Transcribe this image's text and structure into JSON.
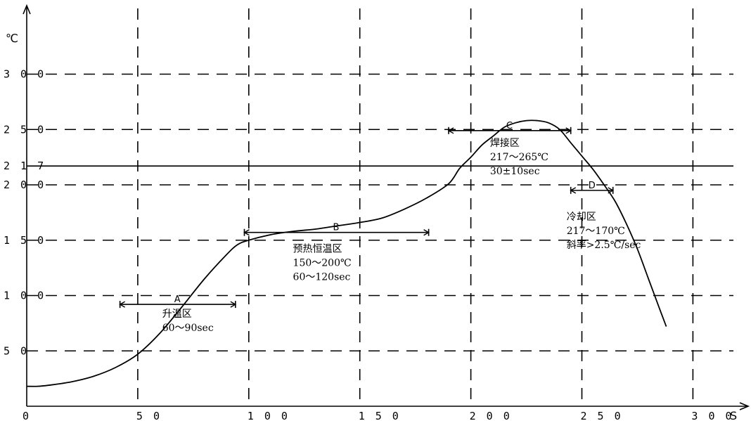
{
  "chart_data": {
    "type": "line",
    "xlabel": "S",
    "ylabel": "℃",
    "xlim": [
      0,
      320
    ],
    "ylim": [
      0,
      320
    ],
    "x_ticks": [
      {
        "value": 0,
        "label": "0"
      },
      {
        "value": 50,
        "label": "5 0"
      },
      {
        "value": 100,
        "label": "1 0 0"
      },
      {
        "value": 150,
        "label": "1 5 0"
      },
      {
        "value": 200,
        "label": "2 0 0"
      },
      {
        "value": 250,
        "label": "2 5 0"
      },
      {
        "value": 300,
        "label": "3 0 0"
      }
    ],
    "y_ticks": [
      {
        "value": 50,
        "label": "5 0"
      },
      {
        "value": 100,
        "label": "1 0 0"
      },
      {
        "value": 150,
        "label": "1 5 0"
      },
      {
        "value": 200,
        "label": "2 0 0"
      },
      {
        "value": 217,
        "label": "2 1 7"
      },
      {
        "value": 250,
        "label": "2 5 0"
      },
      {
        "value": 300,
        "label": "3 0 0"
      }
    ],
    "grid": "dashed",
    "reference_line": {
      "y": 217
    },
    "series": [
      {
        "x": [
          0,
          5,
          10,
          20,
          30,
          40,
          50,
          60,
          70,
          80,
          90,
          95,
          100,
          110,
          120,
          130,
          140,
          150,
          160,
          170,
          180,
          190,
          195,
          200,
          205,
          210,
          215,
          220,
          225,
          230,
          235,
          240,
          245,
          250,
          255,
          260,
          265,
          270,
          275,
          280,
          285,
          288
        ],
        "y": [
          18,
          18,
          19,
          22,
          27,
          35,
          47,
          66,
          90,
          115,
          137,
          146,
          150,
          155,
          158,
          160,
          163,
          166,
          170,
          178,
          188,
          201,
          215,
          225,
          236,
          244,
          252,
          256,
          258,
          258,
          256,
          250,
          238,
          226,
          214,
          200,
          185,
          165,
          142,
          115,
          88,
          72
        ]
      }
    ],
    "zones": [
      {
        "letter": "A",
        "x_start": 42,
        "x_end": 94,
        "y": 92,
        "name": "升温区",
        "details": [
          "60～90sec"
        ]
      },
      {
        "letter": "B",
        "x_start": 98,
        "x_end": 181,
        "y": 157,
        "name": "预热恒温区",
        "details": [
          "150～200℃",
          "60～120sec"
        ]
      },
      {
        "letter": "C",
        "x_start": 190,
        "x_end": 245,
        "y": 249,
        "name": "焊接区",
        "details": [
          "217～265℃",
          "30±10sec"
        ]
      },
      {
        "letter": "D",
        "x_start": 245,
        "x_end": 264,
        "y": 195,
        "name": "冷却区",
        "details": [
          "217～170℃",
          "斜率>2.5℃/sec"
        ]
      }
    ]
  }
}
